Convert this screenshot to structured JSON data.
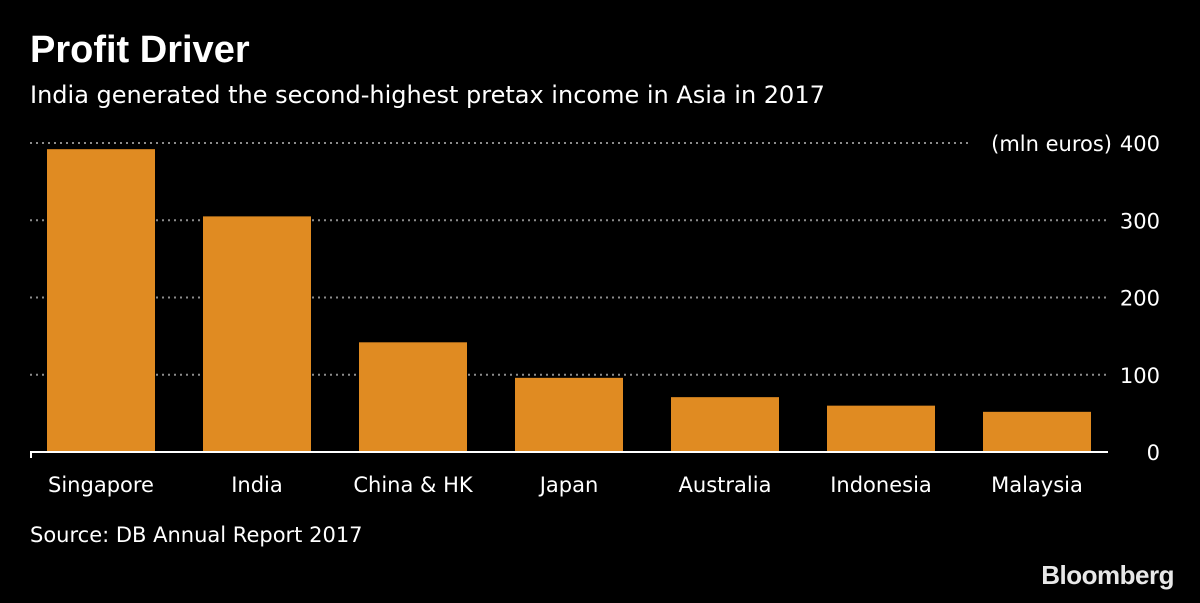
{
  "header": {
    "title": "Profit Driver",
    "subtitle": "India generated the second-highest pretax income in Asia in 2017"
  },
  "footer": {
    "source": "Source: DB Annual Report 2017",
    "brand": "Bloomberg"
  },
  "colors": {
    "background": "#000000",
    "bar": "#e08b22",
    "gridline": "#8c8c8c",
    "text": "#ffffff"
  },
  "chart_data": {
    "type": "bar",
    "categories": [
      "Singapore",
      "India",
      "China & HK",
      "Japan",
      "Australia",
      "Indonesia",
      "Malaysia"
    ],
    "values": [
      392,
      305,
      142,
      96,
      71,
      60,
      52
    ],
    "unit_label": "(mln euros)",
    "ylim": [
      0,
      400
    ],
    "yticks": [
      0,
      100,
      200,
      300,
      400
    ],
    "grid": true,
    "y_axis_side": "right"
  }
}
